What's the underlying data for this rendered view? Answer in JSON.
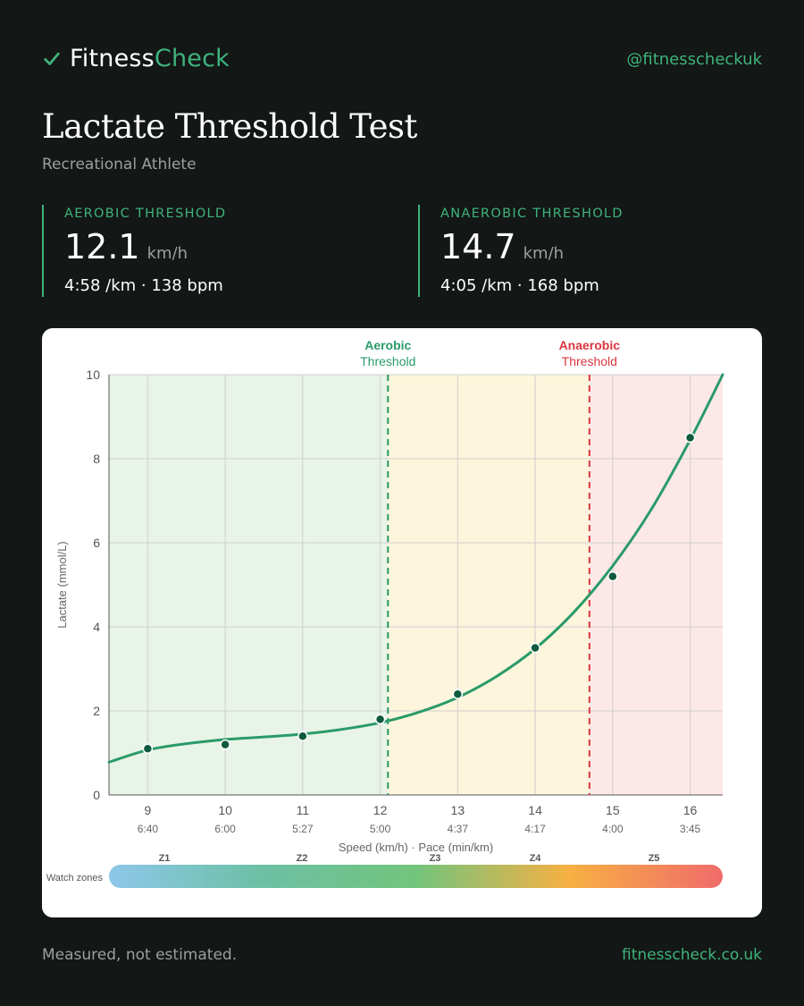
{
  "brand": {
    "name_part1": "Fitness",
    "name_part2": "Check",
    "handle": "@fitnesscheckuk",
    "accent": "#3fb37c"
  },
  "header": {
    "title": "Lactate Threshold Test",
    "subtitle": "Recreational Athlete"
  },
  "stats": {
    "aerobic": {
      "label": "AEROBIC THRESHOLD",
      "value": "12.1",
      "unit": "km/h",
      "sub": "4:58 /km · 138 bpm"
    },
    "anaerobic": {
      "label": "ANAEROBIC THRESHOLD",
      "value": "14.7",
      "unit": "km/h",
      "sub": "4:05 /km · 168 bpm"
    }
  },
  "chart_data": {
    "type": "line",
    "title": "",
    "xlabel": "Speed (km/h) · Pace (min/km)",
    "ylabel": "Lactate (mmol/L)",
    "xlim": [
      8.5,
      16.42
    ],
    "ylim": [
      0,
      10
    ],
    "x_ticks": [
      9,
      10,
      11,
      12,
      13,
      14,
      15,
      16
    ],
    "pace_labels": [
      "6:40",
      "6:00",
      "5:27",
      "5:00",
      "4:37",
      "4:17",
      "4:00",
      "3:45"
    ],
    "y_ticks": [
      0,
      2,
      4,
      6,
      8,
      10
    ],
    "grid": true,
    "series": [
      {
        "x": [
          9,
          10,
          11,
          12,
          13,
          14,
          15,
          16
        ],
        "values": [
          1.1,
          1.2,
          1.4,
          1.8,
          2.4,
          3.5,
          5.2,
          8.5
        ],
        "color": "#2a9a68"
      }
    ],
    "fit_curve": {
      "x": [
        8.5,
        9,
        9.5,
        10,
        10.5,
        11,
        11.5,
        12,
        12.5,
        13,
        13.5,
        14,
        14.5,
        15,
        15.5,
        16,
        16.42
      ],
      "values": [
        0.78,
        1.07,
        1.22,
        1.32,
        1.38,
        1.45,
        1.56,
        1.72,
        1.97,
        2.32,
        2.82,
        3.48,
        4.35,
        5.45,
        6.8,
        8.45,
        10.0
      ]
    },
    "thresholds": [
      {
        "name": "Aerobic",
        "sub": "Threshold",
        "x": 12.1,
        "color": "#2a9a68"
      },
      {
        "name": "Anaerobic",
        "sub": "Threshold",
        "x": 14.7,
        "color": "#d9363e"
      }
    ],
    "zones": [
      {
        "from": 8.5,
        "to": 12.1,
        "color": "#e8f4e8"
      },
      {
        "from": 12.1,
        "to": 14.7,
        "color": "#fdf5dc"
      },
      {
        "from": 14.7,
        "to": 16.42,
        "color": "#fde8e8"
      }
    ],
    "watch_zones": {
      "label": "Watch zones",
      "zones": [
        "Z1",
        "Z2",
        "Z3",
        "Z4",
        "Z5"
      ],
      "gradient": [
        "#8ec7ea",
        "#6cc0a4",
        "#72c47c",
        "#f7b043",
        "#f06b6b"
      ]
    }
  },
  "footer": {
    "tagline": "Measured, not estimated.",
    "url": "fitnesscheck.co.uk"
  }
}
